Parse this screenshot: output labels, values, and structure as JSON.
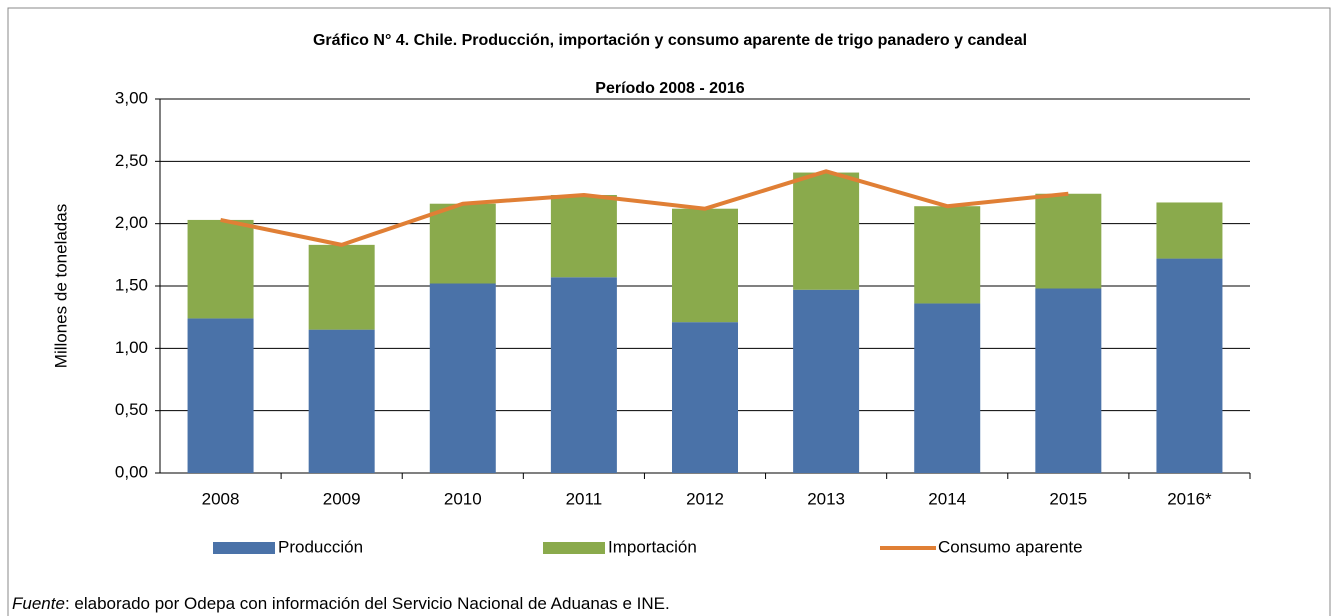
{
  "chart_data": {
    "type": "bar",
    "stacked": true,
    "title": "Gráfico N° 4. Chile. Producción, importación y consumo aparente de trigo panadero y candeal",
    "subtitle": "Período 2008 - 2016",
    "y_label": "Millones de toneladas",
    "categories": [
      "2008",
      "2009",
      "2010",
      "2011",
      "2012",
      "2013",
      "2014",
      "2015",
      "2016*"
    ],
    "series": [
      {
        "name": "Producción",
        "type": "bar",
        "color": "#4a72a8",
        "values": [
          1.24,
          1.15,
          1.52,
          1.57,
          1.21,
          1.47,
          1.36,
          1.48,
          1.72
        ]
      },
      {
        "name": "Importación",
        "type": "bar",
        "color": "#8aaa4c",
        "values": [
          0.79,
          0.68,
          0.64,
          0.66,
          0.91,
          0.94,
          0.78,
          0.76,
          0.45
        ]
      },
      {
        "name": "Consumo aparente",
        "type": "line",
        "color": "#e07f35",
        "values": [
          2.03,
          1.83,
          2.16,
          2.23,
          2.12,
          2.42,
          2.14,
          2.24,
          null
        ]
      }
    ],
    "ylim": [
      0,
      3
    ],
    "yticks": [
      {
        "value": 0,
        "label": "0,00"
      },
      {
        "value": 0.5,
        "label": "0,50"
      },
      {
        "value": 1,
        "label": "1,00"
      },
      {
        "value": 1.5,
        "label": "1,50"
      },
      {
        "value": 2,
        "label": "2,00"
      },
      {
        "value": 2.5,
        "label": "2,50"
      },
      {
        "value": 3,
        "label": "3,00"
      }
    ],
    "grid": true,
    "legend": "bottom",
    "note": {
      "label": "Fuente",
      "text": ": elaborado por Odepa con información del Servicio Nacional de Aduanas e INE."
    }
  }
}
